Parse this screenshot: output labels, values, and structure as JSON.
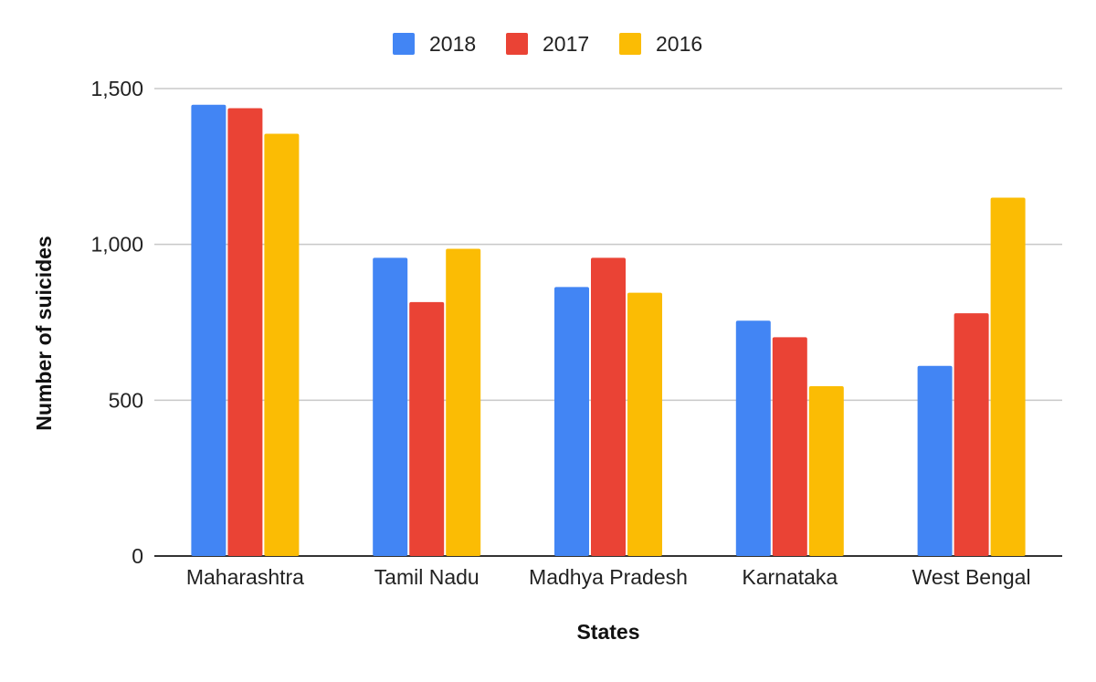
{
  "chart_data": {
    "type": "bar",
    "title": "",
    "xlabel": "States",
    "ylabel": "Number of suicides",
    "categories": [
      "Maharashtra",
      "Tamil Nadu",
      "Madhya Pradesh",
      "Karnataka",
      "West Bengal"
    ],
    "series": [
      {
        "name": "2018",
        "values": [
          1448,
          957,
          863,
          755,
          610
        ]
      },
      {
        "name": "2017",
        "values": [
          1437,
          815,
          957,
          702,
          779
        ]
      },
      {
        "name": "2016",
        "values": [
          1355,
          986,
          845,
          545,
          1150
        ]
      }
    ],
    "ylim": [
      0,
      1500
    ],
    "yticks": [
      0,
      500,
      1000,
      1500
    ],
    "ytick_labels": [
      "0",
      "500",
      "1,000",
      "1,500"
    ],
    "grid": true,
    "legend_position": "top",
    "colors": [
      "#4285f4",
      "#ea4335",
      "#fbbc04"
    ]
  }
}
